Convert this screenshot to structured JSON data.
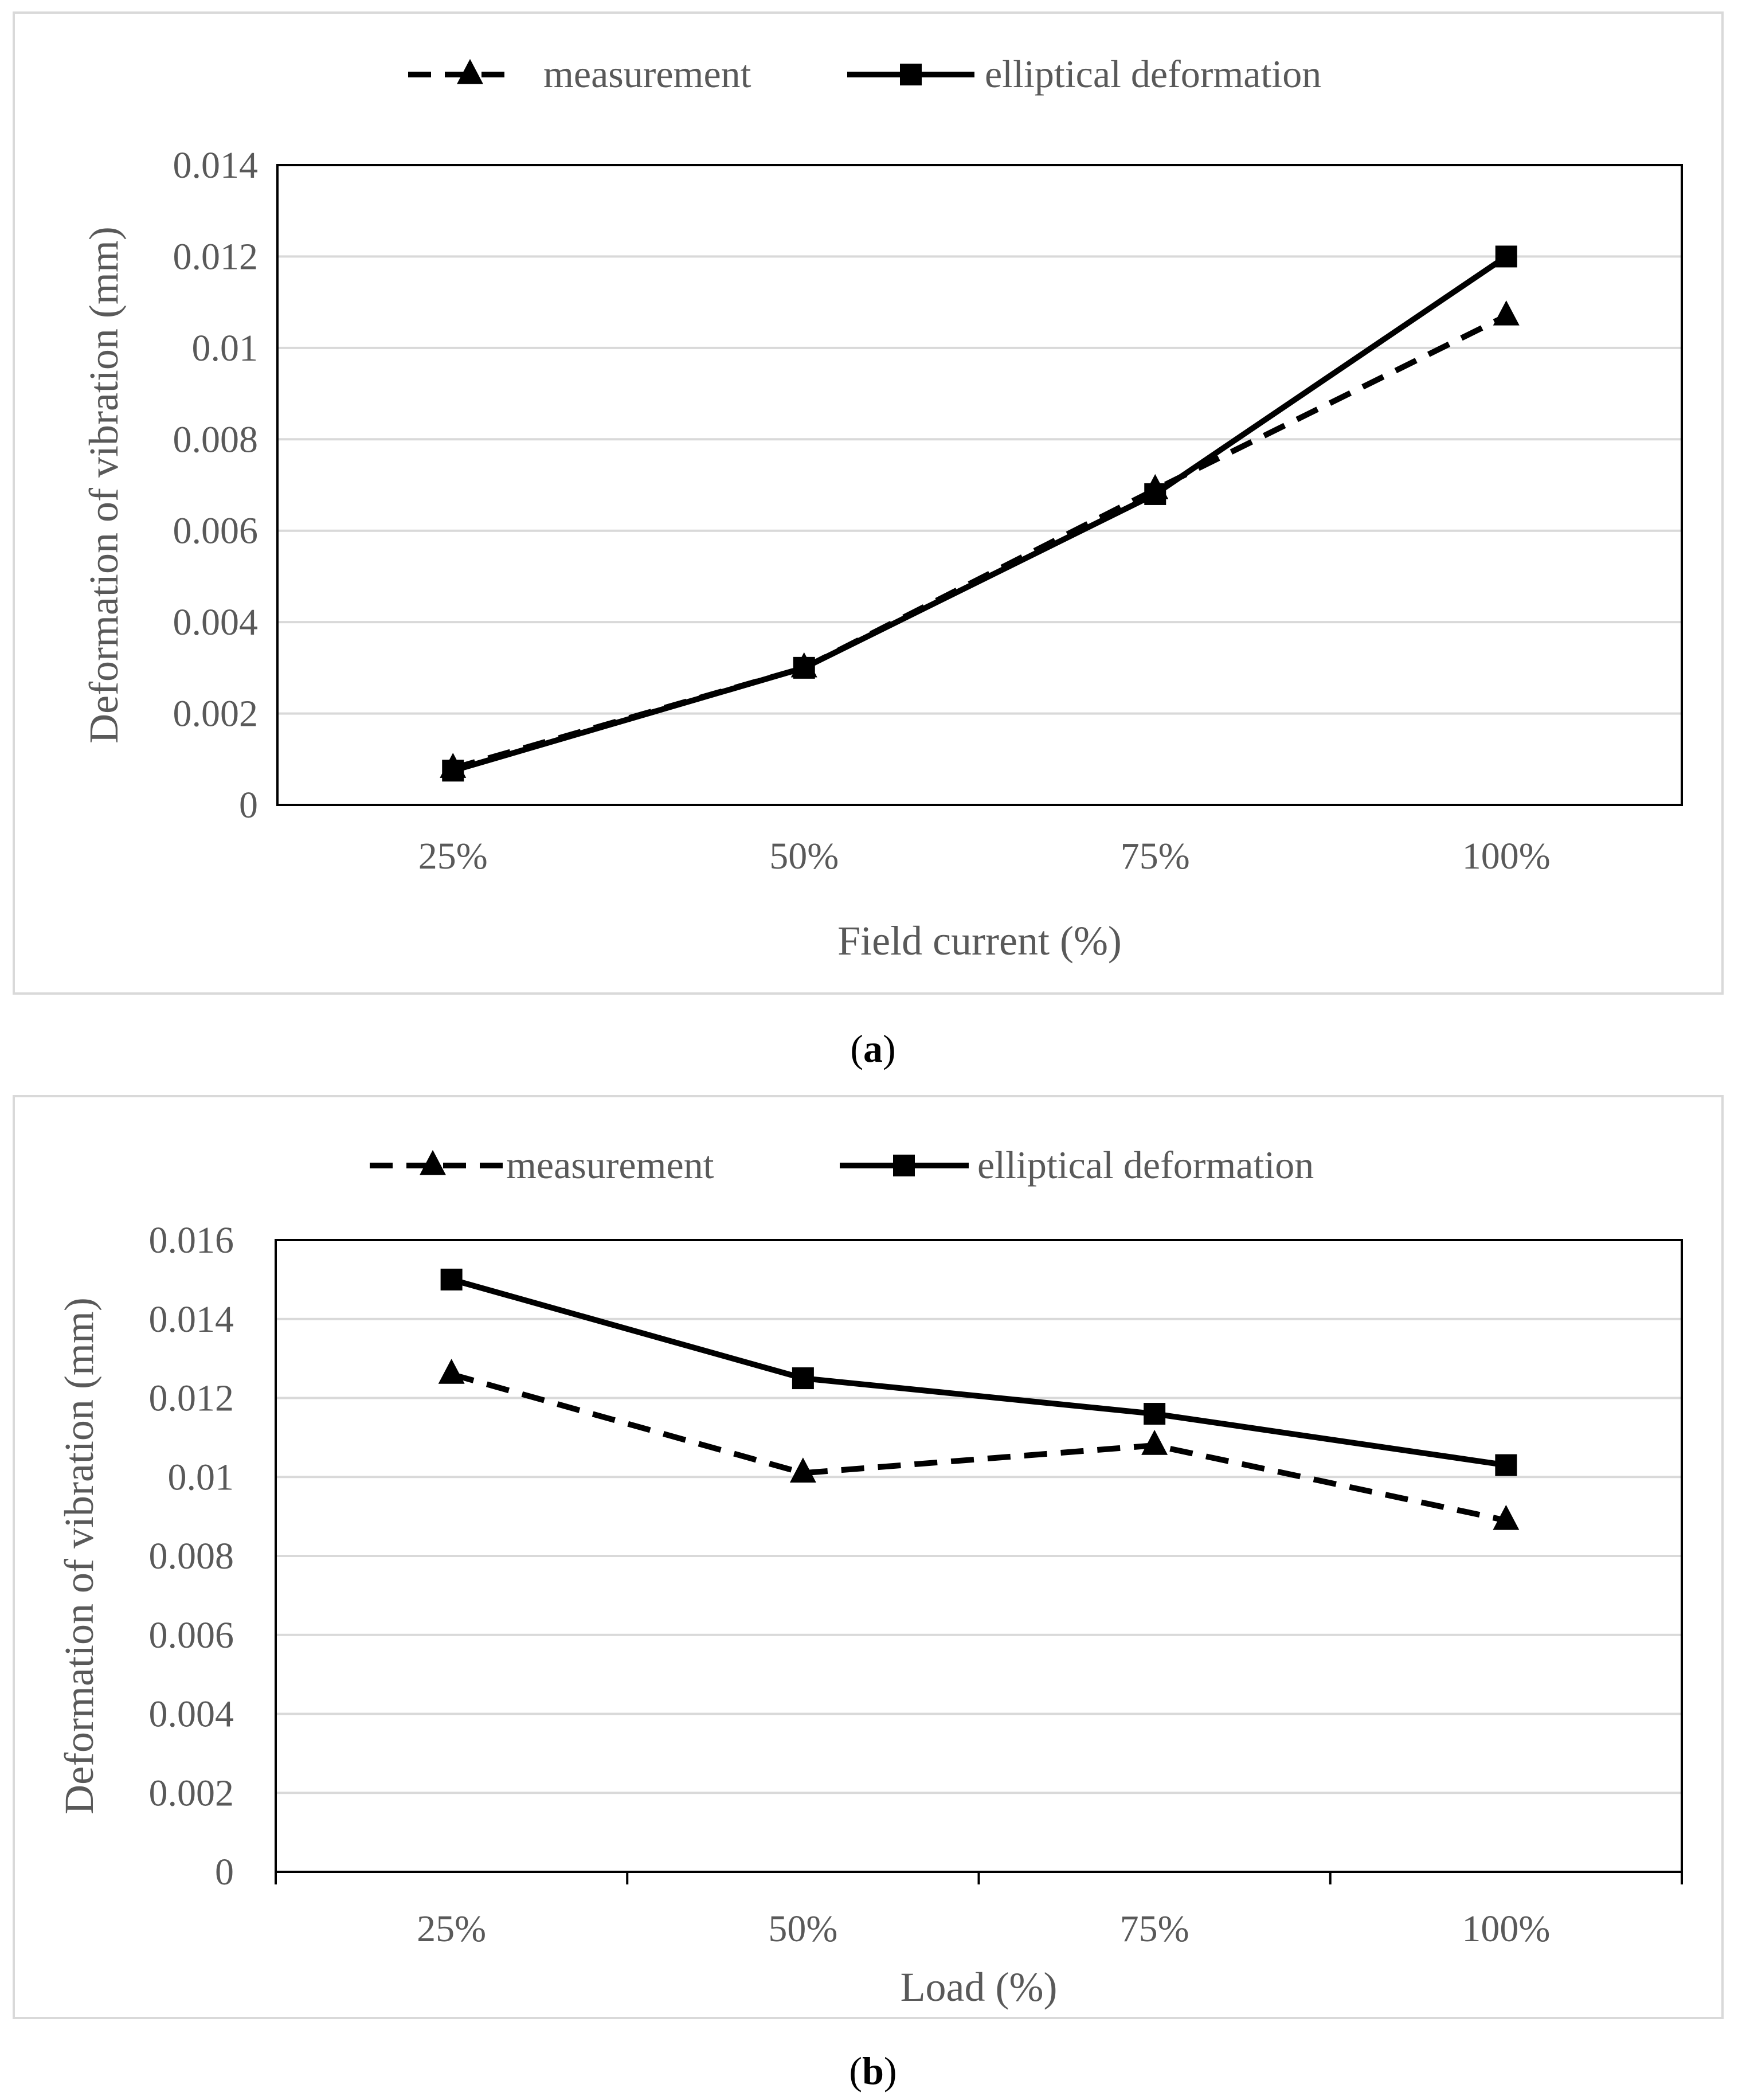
{
  "legend": {
    "measurement": "measurement",
    "elliptical": "elliptical deformation"
  },
  "chart_data": [
    {
      "id": "a",
      "type": "line",
      "caption": "a",
      "xlabel": "Field current  (%)",
      "ylabel": "Deformation of vibration  (mm)",
      "categories": [
        "25%",
        "50%",
        "75%",
        "100%"
      ],
      "ylim": [
        0,
        0.014
      ],
      "yticks": [
        0,
        0.002,
        0.004,
        0.006,
        0.008,
        0.01,
        0.012,
        0.014
      ],
      "ytick_labels": [
        "0",
        "0.002",
        "0.004",
        "0.006",
        "0.008",
        "0.01",
        "0.012",
        "0.014"
      ],
      "grid": true,
      "legend_position": "top-center",
      "series": [
        {
          "name": "measurement",
          "marker": "triangle",
          "line": "dashed",
          "values": [
            0.0008,
            0.003,
            0.0069,
            0.0107
          ]
        },
        {
          "name": "elliptical deformation",
          "marker": "square",
          "line": "solid",
          "values": [
            0.00075,
            0.003,
            0.0068,
            0.012
          ]
        }
      ]
    },
    {
      "id": "b",
      "type": "line",
      "caption": "b",
      "xlabel": "Load  (%)",
      "ylabel": "Deformation of vibration  (mm)",
      "categories": [
        "25%",
        "50%",
        "75%",
        "100%"
      ],
      "ylim": [
        0,
        0.016
      ],
      "yticks": [
        0,
        0.002,
        0.004,
        0.006,
        0.008,
        0.01,
        0.012,
        0.014,
        0.016
      ],
      "ytick_labels": [
        "0",
        "0.002",
        "0.004",
        "0.006",
        "0.008",
        "0.01",
        "0.012",
        "0.014",
        "0.016"
      ],
      "grid": true,
      "legend_position": "top-center",
      "series": [
        {
          "name": "measurement",
          "marker": "triangle",
          "line": "dashed",
          "values": [
            0.0126,
            0.0101,
            0.0108,
            0.0089
          ]
        },
        {
          "name": "elliptical deformation",
          "marker": "square",
          "line": "solid",
          "values": [
            0.015,
            0.0125,
            0.0116,
            0.0103
          ]
        }
      ]
    }
  ]
}
